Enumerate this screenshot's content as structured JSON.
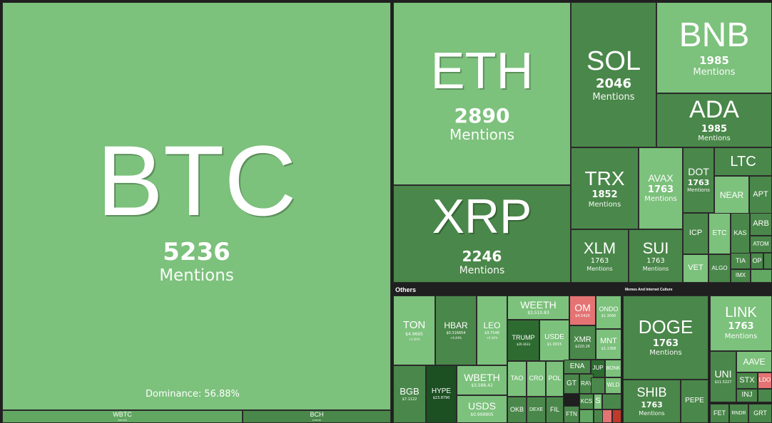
{
  "colors": {
    "light": "#7cc17c",
    "mid": "#62a862",
    "dark": "#4a874a",
    "darker": "#2e6b31",
    "darkest": "#1c4f22",
    "red": "#e57373",
    "deepred": "#c0392b",
    "bg": "#1f1f1f"
  },
  "headers": {
    "others": "Others",
    "memes": "Memes And Internet Culture"
  },
  "dominance": "Dominance: 56.88%",
  "tiles": [
    {
      "sym": "BTC",
      "v1": "5236",
      "v2": "Mentions",
      "color": "light"
    },
    {
      "sym": "WBTC",
      "v1": "$84,500",
      "v2": "",
      "color": "mid"
    },
    {
      "sym": "BCH",
      "v1": "$339.60",
      "v2": "",
      "color": "dark"
    },
    {
      "sym": "ETH",
      "v1": "2890",
      "v2": "Mentions",
      "color": "light"
    },
    {
      "sym": "XRP",
      "v1": "2246",
      "v2": "Mentions",
      "color": "dark"
    },
    {
      "sym": "SOL",
      "v1": "2046",
      "v2": "Mentions",
      "color": "dark"
    },
    {
      "sym": "BNB",
      "v1": "1985",
      "v2": "Mentions",
      "color": "light"
    },
    {
      "sym": "ADA",
      "v1": "1985",
      "v2": "Mentions",
      "color": "dark"
    },
    {
      "sym": "TRX",
      "v1": "1852",
      "v2": "Mentions",
      "color": "dark"
    },
    {
      "sym": "AVAX",
      "v1": "1763",
      "v2": "Mentions",
      "color": "light"
    },
    {
      "sym": "XLM",
      "v1": "1763",
      "v2": "Mentions",
      "color": "dark"
    },
    {
      "sym": "SUI",
      "v1": "1763",
      "v2": "Mentions",
      "color": "dark"
    },
    {
      "sym": "DOT",
      "v1": "1763",
      "v2": "Mentions",
      "color": "dark"
    },
    {
      "sym": "LTC",
      "v1": "",
      "v2": "",
      "color": "dark"
    },
    {
      "sym": "NEAR",
      "v1": "",
      "v2": "",
      "color": "light"
    },
    {
      "sym": "APT",
      "v1": "",
      "v2": "",
      "color": "dark"
    },
    {
      "sym": "ICP",
      "v1": "",
      "v2": "",
      "color": "dark"
    },
    {
      "sym": "ETC",
      "v1": "",
      "v2": "",
      "color": "light"
    },
    {
      "sym": "KAS",
      "v1": "",
      "v2": "",
      "color": "dark"
    },
    {
      "sym": "ARB",
      "v1": "",
      "v2": "",
      "color": "dark"
    },
    {
      "sym": "ATOM",
      "v1": "",
      "v2": "",
      "color": "dark"
    },
    {
      "sym": "VET",
      "v1": "",
      "v2": "",
      "color": "light"
    },
    {
      "sym": "ALGO",
      "v1": "",
      "v2": "",
      "color": "dark"
    },
    {
      "sym": "TIA",
      "v1": "",
      "v2": "",
      "color": "dark"
    },
    {
      "sym": "OP",
      "v1": "",
      "v2": "",
      "color": "dark"
    },
    {
      "sym": "IMX",
      "v1": "",
      "v2": "",
      "color": "dark"
    },
    {
      "sym": "TON",
      "v1": "$4.9695",
      "v2": "+3.50%",
      "color": "light"
    },
    {
      "sym": "HBAR",
      "v1": "$0.316654",
      "v2": "+6.44%",
      "color": "dark"
    },
    {
      "sym": "LEO",
      "v1": "$9.7548",
      "v2": "+0.34%",
      "color": "light"
    },
    {
      "sym": "WEETH",
      "v1": "$3,510.83",
      "v2": "",
      "color": "light"
    },
    {
      "sym": "OM",
      "v1": "$4.5420",
      "v2": "",
      "color": "red"
    },
    {
      "sym": "ONDO",
      "v1": "$1.3066",
      "v2": "",
      "color": "light"
    },
    {
      "sym": "TRUMP",
      "v1": "$29.3633",
      "v2": "",
      "color": "darker"
    },
    {
      "sym": "USDE",
      "v1": "$1.0015",
      "v2": "",
      "color": "light"
    },
    {
      "sym": "XMR",
      "v1": "$220.26",
      "v2": "",
      "color": "dark"
    },
    {
      "sym": "MNT",
      "v1": "$1.1368",
      "v2": "",
      "color": "light"
    },
    {
      "sym": "BGB",
      "v1": "$7.1122",
      "v2": "",
      "color": "dark"
    },
    {
      "sym": "HYPE",
      "v1": "$23.8790",
      "v2": "",
      "color": "darkest"
    },
    {
      "sym": "WBETH",
      "v1": "$3,588.42",
      "v2": "",
      "color": "light"
    },
    {
      "sym": "USDS",
      "v1": "$0.999905",
      "v2": "",
      "color": "light"
    },
    {
      "sym": "TAO",
      "v1": "",
      "v2": "",
      "color": "light"
    },
    {
      "sym": "CRO",
      "v1": "",
      "v2": "",
      "color": "light"
    },
    {
      "sym": "POL",
      "v1": "",
      "v2": "",
      "color": "light"
    },
    {
      "sym": "ENA",
      "v1": "",
      "v2": "",
      "color": "dark"
    },
    {
      "sym": "JUP",
      "v1": "",
      "v2": "",
      "color": "darker"
    },
    {
      "sym": "BONK",
      "v1": "",
      "v2": "",
      "color": "light"
    },
    {
      "sym": "GT",
      "v1": "",
      "v2": "",
      "color": "dark"
    },
    {
      "sym": "RAY",
      "v1": "",
      "v2": "",
      "color": "dark"
    },
    {
      "sym": "WLD",
      "v1": "",
      "v2": "",
      "color": "light"
    },
    {
      "sym": "OKB",
      "v1": "",
      "v2": "",
      "color": "dark"
    },
    {
      "sym": "DEXE",
      "v1": "",
      "v2": "",
      "color": "dark"
    },
    {
      "sym": "KCS",
      "v1": "",
      "v2": "",
      "color": "dark"
    },
    {
      "sym": "S",
      "v1": "",
      "v2": "",
      "color": "light"
    },
    {
      "sym": "FIL",
      "v1": "",
      "v2": "",
      "color": "dark"
    },
    {
      "sym": "FTN",
      "v1": "",
      "v2": "",
      "color": "dark"
    },
    {
      "sym": "DOGE",
      "v1": "1763",
      "v2": "Mentions",
      "color": "dark"
    },
    {
      "sym": "SHIB",
      "v1": "1763",
      "v2": "Mentions",
      "color": "dark"
    },
    {
      "sym": "PEPE",
      "v1": "",
      "v2": "",
      "color": "dark"
    },
    {
      "sym": "LINK",
      "v1": "1763",
      "v2": "Mentions",
      "color": "light"
    },
    {
      "sym": "UNI",
      "v1": "$11.5227",
      "v2": "",
      "color": "dark"
    },
    {
      "sym": "AAVE",
      "v1": "",
      "v2": "",
      "color": "light"
    },
    {
      "sym": "STX",
      "v1": "",
      "v2": "",
      "color": "dark"
    },
    {
      "sym": "LDO",
      "v1": "",
      "v2": "",
      "color": "red"
    },
    {
      "sym": "INJ",
      "v1": "",
      "v2": "",
      "color": "dark"
    },
    {
      "sym": "FET",
      "v1": "",
      "v2": "",
      "color": "dark"
    },
    {
      "sym": "RNDR",
      "v1": "",
      "v2": "",
      "color": "dark"
    },
    {
      "sym": "GRT",
      "v1": "",
      "v2": "",
      "color": "dark"
    }
  ]
}
